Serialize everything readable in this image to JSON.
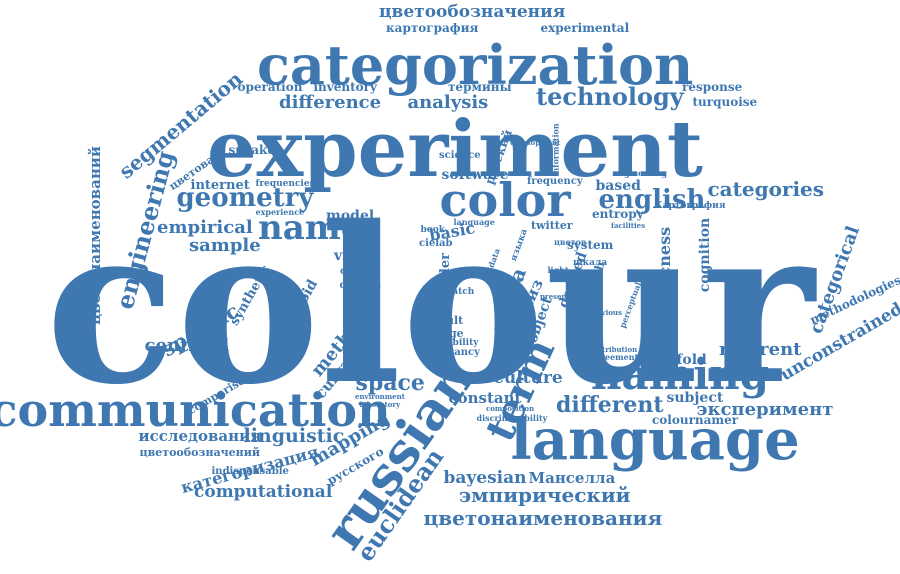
{
  "colors": {
    "text": "#3f78b0",
    "background": "#ffffff"
  },
  "words": [
    "colour",
    "experiment",
    "categorization",
    "language",
    "russian",
    "communication",
    "naming",
    "color",
    "term",
    "name",
    "цветообозначения",
    "картография",
    "experimental",
    "difference",
    "analysis",
    "technology",
    "термины",
    "response",
    "turquoise",
    "operation",
    "inventory",
    "segmentation",
    "цветонаименований",
    "engineering",
    "speaker",
    "цветовая",
    "internet",
    "geometry",
    "empirical",
    "sample",
    "model",
    "vision",
    "english",
    "categories",
    "based",
    "entropy",
    "Картография",
    "cognition",
    "basicness",
    "categorical",
    "methodologies",
    "unconstrained",
    "referent",
    "manifold",
    "specific",
    "centroid",
    "ellipsoid",
    "synthetic",
    "chemical",
    "method",
    "curvature",
    "space",
    "culture",
    "constant",
    "different",
    "subject",
    "эксперимент",
    "colournamer",
    "исследования",
    "linguistic",
    "mapping",
    "цветообозначений",
    "категоризация",
    "русского",
    "indispensable",
    "computational",
    "euclidean",
    "bayesian",
    "Манселла",
    "эмпирический",
    "цветонаименования",
    "comparison",
    "software",
    "frequency",
    "science",
    "basic",
    "gender",
    "цвета",
    "анализ",
    "object",
    "twitter",
    "system",
    "research",
    "derived",
    "image",
    "result",
    "dataset",
    "classes",
    "variability",
    "constancy",
    "русский",
    "book",
    "cielab",
    "frequencies",
    "experience",
    "patch",
    "language",
    "data",
    "языка",
    "цветов",
    "шкала",
    "light",
    "agreement",
    "distribution",
    "composition",
    "discriminability",
    "information",
    "development",
    "augmenting",
    "facilities",
    "perceptual",
    "present",
    "previous",
    "environment",
    "laboratory"
  ]
}
